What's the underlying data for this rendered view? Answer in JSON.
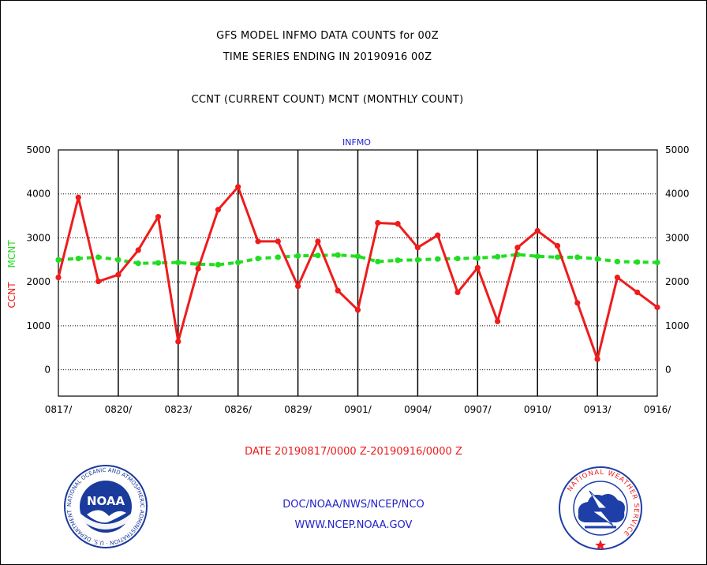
{
  "header": {
    "title_line1": "GFS MODEL INFMO DATA COUNTS for 00Z",
    "title_line2": "TIME SERIES ENDING IN 20190916 00Z",
    "subtitle": "CCNT (CURRENT COUNT) MCNT (MONTHLY COUNT)"
  },
  "footer": {
    "date_range": "DATE 20190817/0000 Z-20190916/0000 Z",
    "org": "DOC/NOAA/NWS/NCEP/NCO",
    "url": "WWW.NCEP.NOAA.GOV",
    "noaa_logo_text": "NOAA",
    "noaa_ring_text": "NATIONAL OCEANIC AND ATMOSPHERIC ADMINISTRATION · U.S. DEPARTMENT OF COMMERCE ·",
    "nws_ring_text": "NATIONAL WEATHER SERVICE"
  },
  "colors": {
    "ccnt": "#ee1c1c",
    "mcnt": "#22dd22",
    "axis": "#000000",
    "label_blue": "#2222cc",
    "noaa_blue": "#1a3a9c",
    "nws_blue": "#1e3fa8"
  },
  "chart_data": {
    "type": "line",
    "title": "INFMO",
    "ylabel_ccnt": "CCNT",
    "ylabel_mcnt": "MCNT",
    "x_tick_labels": [
      "0817/",
      "0820/",
      "0823/",
      "0826/",
      "0829/",
      "0901/",
      "0904/",
      "0907/",
      "0910/",
      "0913/",
      "0916/"
    ],
    "y_tick_labels": [
      "0",
      "1000",
      "2000",
      "3000",
      "4000",
      "5000"
    ],
    "ylim": [
      -600,
      5000
    ],
    "x_count": 31,
    "grid": true,
    "series": [
      {
        "name": "CCNT",
        "values": [
          2100,
          3920,
          2010,
          2160,
          2720,
          3480,
          640,
          2300,
          3640,
          4160,
          2920,
          2920,
          1900,
          2920,
          1800,
          1360,
          3340,
          3320,
          2780,
          3060,
          1760,
          2320,
          1100,
          2780,
          3160,
          2820,
          1520,
          240,
          2100,
          1760,
          1420
        ]
      },
      {
        "name": "MCNT",
        "values": [
          2500,
          2530,
          2560,
          2500,
          2420,
          2430,
          2440,
          2400,
          2390,
          2440,
          2530,
          2560,
          2590,
          2600,
          2610,
          2580,
          2460,
          2490,
          2500,
          2520,
          2530,
          2540,
          2570,
          2620,
          2580,
          2560,
          2560,
          2520,
          2460,
          2450,
          2440
        ]
      }
    ]
  }
}
